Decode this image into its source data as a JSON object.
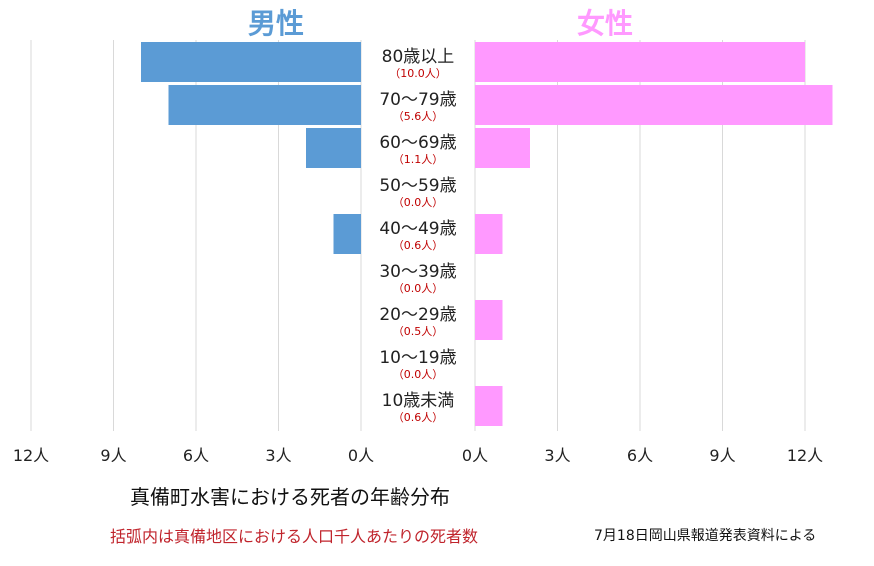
{
  "headers": {
    "male": "男性",
    "female": "女性",
    "male_color": "#5b9bd5",
    "female_color": "#ff99ff"
  },
  "title": "真備町水害における死者の年齢分布",
  "note": "括弧内は真備地区における人口千人あたりの死者数",
  "source": "7月18日岡山県報道発表資料による",
  "chart_data": {
    "type": "bar",
    "orientation": "horizontal-population-pyramid",
    "categories": [
      "80歳以上",
      "70〜79歳",
      "60〜69歳",
      "50〜59歳",
      "40〜49歳",
      "30〜39歳",
      "20〜29歳",
      "10〜19歳",
      "10歳未満"
    ],
    "sublabels": [
      "（10.0人）",
      "（5.6人）",
      "（1.1人）",
      "（0.0人）",
      "（0.6人）",
      "（0.0人）",
      "（0.5人）",
      "（0.0人）",
      "（0.6人）"
    ],
    "series": [
      {
        "name": "男性",
        "values": [
          8,
          7,
          2,
          0,
          1,
          0,
          0,
          0,
          0
        ]
      },
      {
        "name": "女性",
        "values": [
          12,
          13,
          2,
          0,
          1,
          0,
          1,
          0,
          1
        ]
      }
    ],
    "xlim": [
      0,
      12
    ],
    "left_ticks": [
      "12人",
      "9人",
      "6人",
      "3人",
      "0人"
    ],
    "right_ticks": [
      "0人",
      "3人",
      "6人",
      "9人",
      "12人"
    ],
    "tick_values_left": [
      12,
      9,
      6,
      3,
      0
    ],
    "tick_values_right": [
      0,
      3,
      6,
      9,
      12
    ],
    "grid": true,
    "sublabel_color": "#c00000"
  }
}
